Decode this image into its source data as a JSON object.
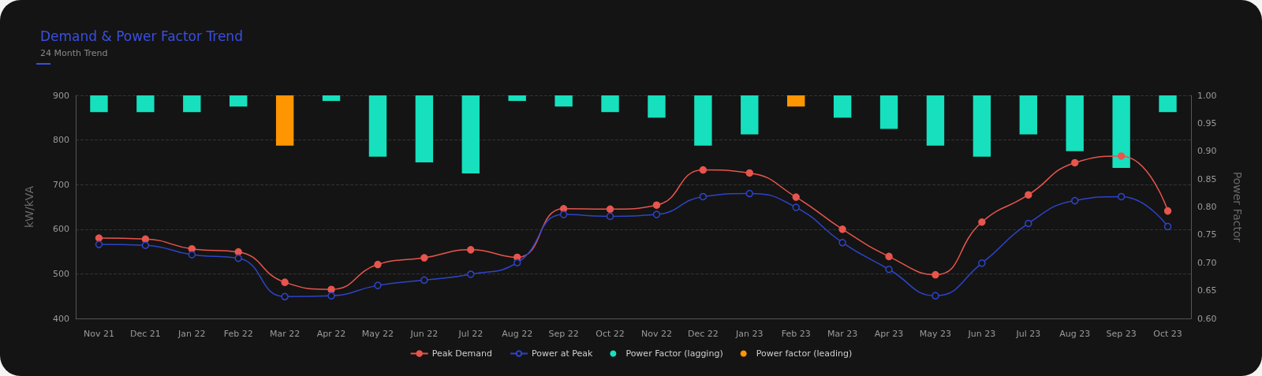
{
  "chart_data": {
    "type": "line",
    "title": "Demand & Power Factor Trend",
    "subtitle": "24 Month Trend",
    "ylabel": "kW/kVA",
    "y2label": "Power Factor",
    "categories": [
      "Nov 21",
      "Dec 21",
      "Jan 22",
      "Feb 22",
      "Mar 22",
      "Apr 22",
      "May 22",
      "Jun 22",
      "Jul 22",
      "Aug 22",
      "Sep 22",
      "Oct 22",
      "Nov 22",
      "Dec 22",
      "Jan 23",
      "Feb 23",
      "Mar 23",
      "Apr 23",
      "May 23",
      "Jun 23",
      "Jul 23",
      "Aug 23",
      "Sep 23",
      "Oct 23"
    ],
    "series": [
      {
        "name": "Peak Demand",
        "color": "#e8554d",
        "marker": "circle",
        "values": [
          580,
          578,
          556,
          549,
          481,
          465,
          521,
          536,
          554,
          537,
          646,
          645,
          654,
          733,
          726,
          672,
          600,
          539,
          498,
          616,
          677,
          749,
          764,
          641
        ]
      },
      {
        "name": "Power at Peak",
        "color": "#2e44c8",
        "marker": "circle",
        "values": [
          566,
          564,
          543,
          535,
          449,
          451,
          474,
          486,
          499,
          525,
          633,
          629,
          633,
          673,
          680,
          649,
          570,
          510,
          451,
          524,
          613,
          664,
          673,
          606
        ]
      },
      {
        "name": "Power Factor (lagging)",
        "type": "bar",
        "axis": "y2",
        "color": "#16e0bd",
        "base": [
          1,
          1,
          1,
          1,
          null,
          1,
          1,
          1,
          1,
          1,
          1,
          1,
          1,
          1,
          1,
          null,
          1,
          1,
          1,
          1,
          1,
          1,
          1,
          1
        ],
        "values": [
          -0.03,
          -0.03,
          -0.03,
          -0.02,
          null,
          -0.01,
          -0.11,
          -0.12,
          -0.14,
          -0.01,
          -0.02,
          -0.03,
          -0.04,
          -0.09,
          -0.07,
          null,
          -0.04,
          -0.06,
          -0.09,
          -0.11,
          -0.07,
          -0.1,
          -0.13,
          -0.03
        ]
      },
      {
        "name": "Power factor (leading)",
        "type": "bar",
        "axis": "y2",
        "color": "#ff9500",
        "base": [
          null,
          null,
          null,
          null,
          1,
          null,
          null,
          null,
          null,
          null,
          null,
          null,
          null,
          null,
          null,
          1,
          null,
          null,
          null,
          null,
          null,
          null,
          null,
          null
        ],
        "values": [
          null,
          null,
          null,
          null,
          -0.09,
          null,
          null,
          null,
          null,
          null,
          null,
          null,
          null,
          null,
          null,
          -0.02,
          null,
          null,
          null,
          null,
          null,
          null,
          null,
          null
        ]
      }
    ],
    "ylim": [
      400,
      900
    ],
    "yticks": [
      400,
      500,
      600,
      700,
      800,
      900
    ],
    "y2lim": [
      0.6,
      1
    ],
    "y2ticks": [
      {
        "value": 0.6,
        "label": "0.60"
      },
      {
        "value": 0.65,
        "label": "0.65"
      },
      {
        "value": 0.7,
        "label": "0.70"
      },
      {
        "value": 0.75,
        "label": "0.75"
      },
      {
        "value": 0.8,
        "label": "0.80"
      },
      {
        "value": 0.85,
        "label": "0.85"
      },
      {
        "value": 0.9,
        "label": "0.90"
      },
      {
        "value": 0.95,
        "label": "0.95"
      },
      {
        "value": 1,
        "label": "1.00"
      }
    ],
    "grid": "y",
    "legend": "bottom",
    "line_style": "solid"
  }
}
